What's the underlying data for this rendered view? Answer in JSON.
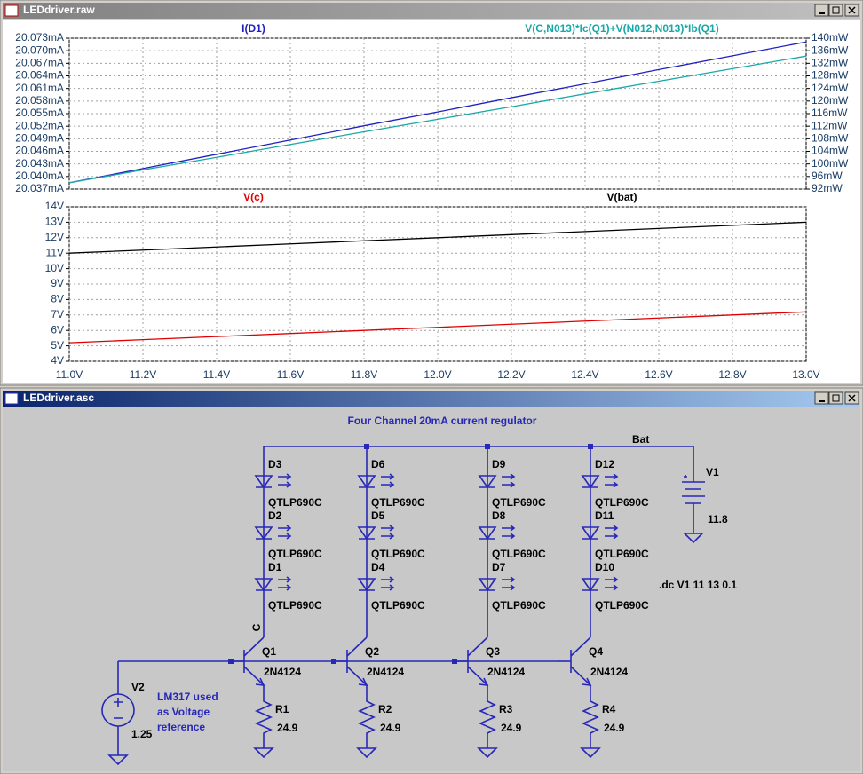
{
  "windows": [
    {
      "title": "LEDdriver.raw"
    },
    {
      "title": "LEDdriver.asc"
    }
  ],
  "chart_data": [
    {
      "type": "line",
      "grid": true,
      "x": [
        11.0,
        11.2,
        11.4,
        11.6,
        11.8,
        12.0,
        12.2,
        12.4,
        12.6,
        12.8,
        13.0
      ],
      "xlim": [
        11.0,
        13.0
      ],
      "ylim": [
        20.037,
        20.073
      ],
      "yticks": [
        {
          "value": 20.073,
          "label": "20.073mA"
        },
        {
          "value": 20.07,
          "label": "20.070mA"
        },
        {
          "value": 20.067,
          "label": "20.067mA"
        },
        {
          "value": 20.064,
          "label": "20.064mA"
        },
        {
          "value": 20.061,
          "label": "20.061mA"
        },
        {
          "value": 20.058,
          "label": "20.058mA"
        },
        {
          "value": 20.055,
          "label": "20.055mA"
        },
        {
          "value": 20.052,
          "label": "20.052mA"
        },
        {
          "value": 20.049,
          "label": "20.049mA"
        },
        {
          "value": 20.046,
          "label": "20.046mA"
        },
        {
          "value": 20.043,
          "label": "20.043mA"
        },
        {
          "value": 20.04,
          "label": "20.040mA"
        },
        {
          "value": 20.037,
          "label": "20.037mA"
        }
      ],
      "y2lim": [
        92,
        140
      ],
      "y2ticks": [
        {
          "value": 140,
          "label": "140mW"
        },
        {
          "value": 136,
          "label": "136mW"
        },
        {
          "value": 132,
          "label": "132mW"
        },
        {
          "value": 128,
          "label": "128mW"
        },
        {
          "value": 124,
          "label": "124mW"
        },
        {
          "value": 120,
          "label": "120mW"
        },
        {
          "value": 116,
          "label": "116mW"
        },
        {
          "value": 112,
          "label": "112mW"
        },
        {
          "value": 108,
          "label": "108mW"
        },
        {
          "value": 104,
          "label": "104mW"
        },
        {
          "value": 100,
          "label": "100mW"
        },
        {
          "value": 96,
          "label": "96mW"
        },
        {
          "value": 92,
          "label": "92mW"
        }
      ],
      "series": [
        {
          "name": "I(D1)",
          "color": "#2020c0",
          "values": [
            20.0385,
            20.0419,
            20.0453,
            20.0487,
            20.0521,
            20.0554,
            20.0588,
            20.0621,
            20.0655,
            20.0688,
            20.0721
          ]
        },
        {
          "name": "V(C,N013)*Ic(Q1)+V(N012,N013)*Ib(Q1)",
          "color": "#18a8a8",
          "axis": "y2",
          "values": [
            94.0,
            98.1,
            102.1,
            106.2,
            110.2,
            114.2,
            118.2,
            122.3,
            126.3,
            130.3,
            134.3
          ]
        }
      ]
    },
    {
      "type": "line",
      "grid": true,
      "x": [
        11.0,
        11.2,
        11.4,
        11.6,
        11.8,
        12.0,
        12.2,
        12.4,
        12.6,
        12.8,
        13.0
      ],
      "xlim": [
        11.0,
        13.0
      ],
      "xticks": [
        {
          "value": 11.0,
          "label": "11.0V"
        },
        {
          "value": 11.2,
          "label": "11.2V"
        },
        {
          "value": 11.4,
          "label": "11.4V"
        },
        {
          "value": 11.6,
          "label": "11.6V"
        },
        {
          "value": 11.8,
          "label": "11.8V"
        },
        {
          "value": 12.0,
          "label": "12.0V"
        },
        {
          "value": 12.2,
          "label": "12.2V"
        },
        {
          "value": 12.4,
          "label": "12.4V"
        },
        {
          "value": 12.6,
          "label": "12.6V"
        },
        {
          "value": 12.8,
          "label": "12.8V"
        },
        {
          "value": 13.0,
          "label": "13.0V"
        }
      ],
      "ylim": [
        4,
        14
      ],
      "yticks": [
        {
          "value": 14,
          "label": "14V"
        },
        {
          "value": 13,
          "label": "13V"
        },
        {
          "value": 12,
          "label": "12V"
        },
        {
          "value": 11,
          "label": "11V"
        },
        {
          "value": 10,
          "label": "10V"
        },
        {
          "value": 9,
          "label": "9V"
        },
        {
          "value": 8,
          "label": "8V"
        },
        {
          "value": 7,
          "label": "7V"
        },
        {
          "value": 6,
          "label": "6V"
        },
        {
          "value": 5,
          "label": "5V"
        },
        {
          "value": 4,
          "label": "4V"
        }
      ],
      "series": [
        {
          "name": "V(c)",
          "color": "#e00000",
          "values": [
            5.2,
            5.4,
            5.6,
            5.8,
            6.0,
            6.2,
            6.4,
            6.6,
            6.8,
            7.0,
            7.2
          ]
        },
        {
          "name": "V(bat)",
          "color": "#000000",
          "values": [
            11.0,
            11.2,
            11.4,
            11.6,
            11.8,
            12.0,
            12.2,
            12.4,
            12.6,
            12.8,
            13.0
          ]
        }
      ]
    }
  ],
  "schematic": {
    "title": "Four Channel 20mA current regulator",
    "net_label": "Bat",
    "node_label": "C",
    "channels": [
      {
        "diodes": [
          {
            "name": "D3",
            "model": "QTLP690C"
          },
          {
            "name": "D2",
            "model": "QTLP690C"
          },
          {
            "name": "D1",
            "model": "QTLP690C"
          }
        ],
        "transistor": {
          "name": "Q1",
          "model": "2N4124"
        },
        "resistor": {
          "name": "R1",
          "value": "24.9"
        }
      },
      {
        "diodes": [
          {
            "name": "D6",
            "model": "QTLP690C"
          },
          {
            "name": "D5",
            "model": "QTLP690C"
          },
          {
            "name": "D4",
            "model": "QTLP690C"
          }
        ],
        "transistor": {
          "name": "Q2",
          "model": "2N4124"
        },
        "resistor": {
          "name": "R2",
          "value": "24.9"
        }
      },
      {
        "diodes": [
          {
            "name": "D9",
            "model": "QTLP690C"
          },
          {
            "name": "D8",
            "model": "QTLP690C"
          },
          {
            "name": "D7",
            "model": "QTLP690C"
          }
        ],
        "transistor": {
          "name": "Q3",
          "model": "2N4124"
        },
        "resistor": {
          "name": "R3",
          "value": "24.9"
        }
      },
      {
        "diodes": [
          {
            "name": "D12",
            "model": "QTLP690C"
          },
          {
            "name": "D11",
            "model": "QTLP690C"
          },
          {
            "name": "D10",
            "model": "QTLP690C"
          }
        ],
        "transistor": {
          "name": "Q4",
          "model": "2N4124"
        },
        "resistor": {
          "name": "R4",
          "value": "24.9"
        }
      }
    ],
    "battery": {
      "name": "V1",
      "value": "11.8"
    },
    "reference": {
      "name": "V2",
      "value": "1.25"
    },
    "directive": ".dc V1 11 13 0.1",
    "comment": [
      "LM317 used",
      "as Voltage",
      "reference"
    ]
  }
}
